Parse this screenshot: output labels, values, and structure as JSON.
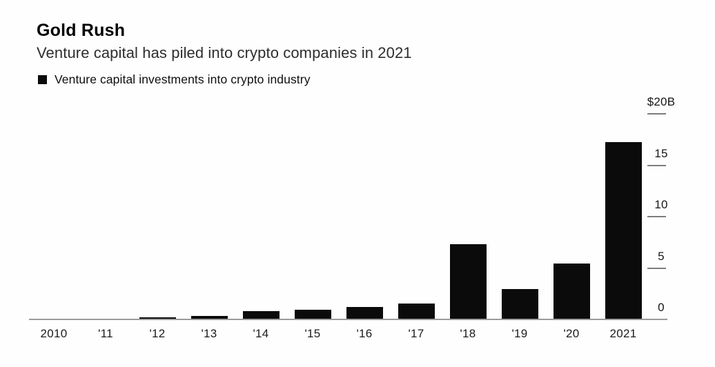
{
  "header": {
    "title": "Gold Rush",
    "subtitle": "Venture capital has piled into crypto companies in 2021"
  },
  "legend": {
    "label": "Venture capital investments into crypto industry",
    "swatch_color": "#0b0b0b"
  },
  "colors": {
    "background": "#fefefe",
    "bar": "#0b0b0b",
    "axis_line": "#9b9b9b",
    "tick": "#7d7d7d",
    "text": "#111111"
  },
  "chart_data": {
    "type": "bar",
    "title": "Gold Rush",
    "subtitle": "Venture capital has piled into crypto companies in 2021",
    "legend_entries": [
      "Venture capital investments into crypto industry"
    ],
    "legend_position": "top-left",
    "grid": false,
    "unit": "$B",
    "xlabel": "",
    "ylabel": "",
    "ylim": [
      0,
      20
    ],
    "yaxis_side": "right",
    "yticks": [
      {
        "label": "$20B",
        "value": 20
      },
      {
        "label": "15",
        "value": 15
      },
      {
        "label": "10",
        "value": 10
      },
      {
        "label": "5",
        "value": 5
      },
      {
        "label": "0",
        "value": 0
      }
    ],
    "categories": [
      "2010",
      "'11",
      "'12",
      "'13",
      "'14",
      "'15",
      "'16",
      "'17",
      "'18",
      "'19",
      "'20",
      "2021"
    ],
    "values": [
      0.05,
      0.07,
      0.25,
      0.4,
      0.85,
      1.0,
      1.25,
      1.6,
      7.4,
      3.0,
      5.5,
      17.3
    ]
  }
}
